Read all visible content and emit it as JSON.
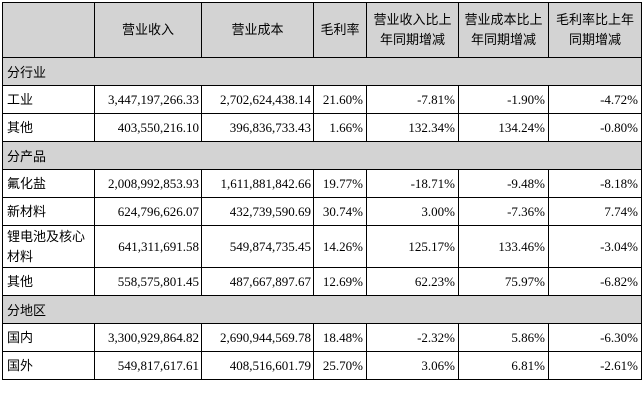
{
  "table": {
    "colors": {
      "header_bg": "#d3d3d3",
      "border": "#000000",
      "text": "#000000",
      "row_bg": "#ffffff"
    },
    "header": {
      "corner": "",
      "revenue": "营业收入",
      "cost": "营业成本",
      "margin": "毛利率",
      "revenue_yoy": "营业收入比上年同期增减",
      "cost_yoy": "营业成本比上年同期增减",
      "margin_yoy": "毛利率比上年同期增减"
    },
    "rows": [
      {
        "type": "section",
        "label": "分行业"
      },
      {
        "type": "data",
        "label": "工业",
        "revenue": "3,447,197,266.33",
        "cost": "2,702,624,438.14",
        "margin": "21.60%",
        "revenue_yoy": "-7.81%",
        "cost_yoy": "-1.90%",
        "margin_yoy": "-4.72%"
      },
      {
        "type": "data",
        "label": "其他",
        "revenue": "403,550,216.10",
        "cost": "396,836,733.43",
        "margin": "1.66%",
        "revenue_yoy": "132.34%",
        "cost_yoy": "134.24%",
        "margin_yoy": "-0.80%"
      },
      {
        "type": "section",
        "label": "分产品"
      },
      {
        "type": "data",
        "label": "氟化盐",
        "revenue": "2,008,992,853.93",
        "cost": "1,611,881,842.66",
        "margin": "19.77%",
        "revenue_yoy": "-18.71%",
        "cost_yoy": "-9.48%",
        "margin_yoy": "-8.18%"
      },
      {
        "type": "data",
        "label": "新材料",
        "revenue": "624,796,626.07",
        "cost": "432,739,590.69",
        "margin": "30.74%",
        "revenue_yoy": "3.00%",
        "cost_yoy": "-7.36%",
        "margin_yoy": "7.74%"
      },
      {
        "type": "data",
        "label": "锂电池及核心材料",
        "revenue": "641,311,691.58",
        "cost": "549,874,735.45",
        "margin": "14.26%",
        "revenue_yoy": "125.17%",
        "cost_yoy": "133.46%",
        "margin_yoy": "-3.04%"
      },
      {
        "type": "data",
        "label": "其他",
        "revenue": "558,575,801.45",
        "cost": "487,667,897.67",
        "margin": "12.69%",
        "revenue_yoy": "62.23%",
        "cost_yoy": "75.97%",
        "margin_yoy": "-6.82%"
      },
      {
        "type": "section",
        "label": "分地区"
      },
      {
        "type": "data",
        "label": "国内",
        "revenue": "3,300,929,864.82",
        "cost": "2,690,944,569.78",
        "margin": "18.48%",
        "revenue_yoy": "-2.32%",
        "cost_yoy": "5.86%",
        "margin_yoy": "-6.30%"
      },
      {
        "type": "data",
        "label": "国外",
        "revenue": "549,817,617.61",
        "cost": "408,516,601.79",
        "margin": "25.70%",
        "revenue_yoy": "3.06%",
        "cost_yoy": "6.81%",
        "margin_yoy": "-2.61%"
      }
    ]
  }
}
